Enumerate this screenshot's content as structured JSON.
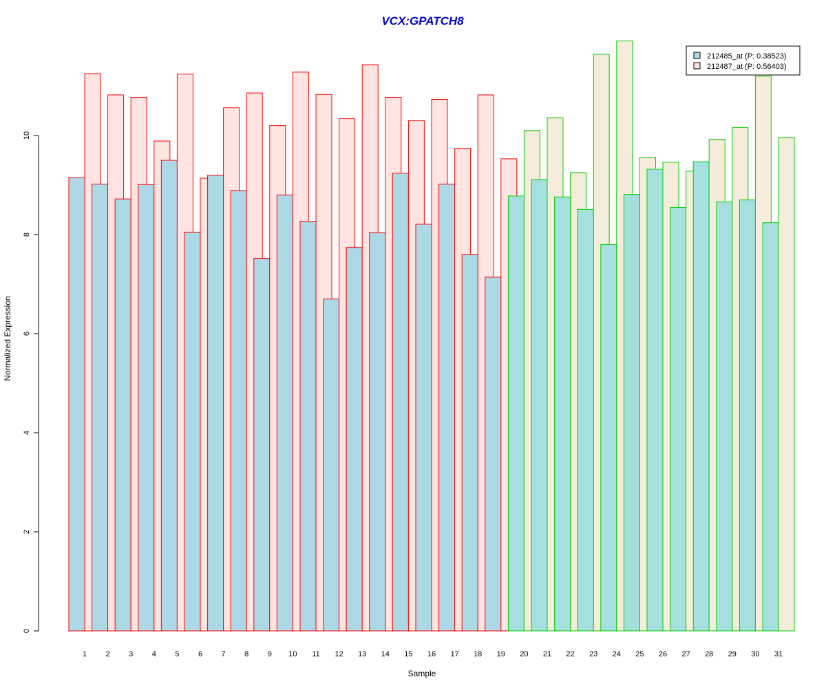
{
  "chart_data": {
    "type": "bar",
    "title": "VCX:GPATCH8",
    "xlabel": "Sample",
    "ylabel": "Normalized Expression",
    "ylim": [
      0,
      12
    ],
    "yticks": [
      "0",
      "2",
      "4",
      "6",
      "8",
      "10"
    ],
    "categories": [
      "1",
      "2",
      "3",
      "4",
      "5",
      "6",
      "7",
      "8",
      "9",
      "10",
      "11",
      "12",
      "13",
      "14",
      "15",
      "16",
      "17",
      "18",
      "19",
      "20",
      "21",
      "22",
      "23",
      "24",
      "25",
      "26",
      "27",
      "28",
      "29",
      "30",
      "31"
    ],
    "series": [
      {
        "name": "212485_at (P: 0.38523)",
        "values": [
          9.15,
          9.02,
          8.72,
          9.01,
          9.5,
          8.05,
          9.2,
          8.89,
          7.52,
          8.8,
          8.27,
          6.7,
          7.74,
          8.04,
          9.24,
          8.21,
          9.02,
          7.6,
          7.14,
          8.78,
          9.11,
          8.76,
          8.51,
          7.8,
          8.81,
          9.32,
          8.55,
          9.47,
          8.66,
          8.7,
          8.24
        ]
      },
      {
        "name": "212487_at (P: 0.56403)",
        "values": [
          11.25,
          10.82,
          10.77,
          9.89,
          11.24,
          9.14,
          10.56,
          10.86,
          10.2,
          11.28,
          10.83,
          10.34,
          11.43,
          10.77,
          10.3,
          10.73,
          9.74,
          10.82,
          9.53,
          10.1,
          10.36,
          9.25,
          11.64,
          11.91,
          9.56,
          9.46,
          9.28,
          9.92,
          10.16,
          11.2,
          9.96
        ]
      }
    ],
    "group_split_after": 19,
    "legend": {
      "position": "top-right"
    },
    "colors": {
      "series1_fill_group1": "#add8e6",
      "series2_fill_group1": "#ffe4e1",
      "series1_fill_group2": "#a6e0de",
      "series2_fill_group2": "#f5ecdb",
      "border_group1": "#ff0000",
      "border_group2": "#00cc00",
      "title": "#0000cc"
    }
  }
}
